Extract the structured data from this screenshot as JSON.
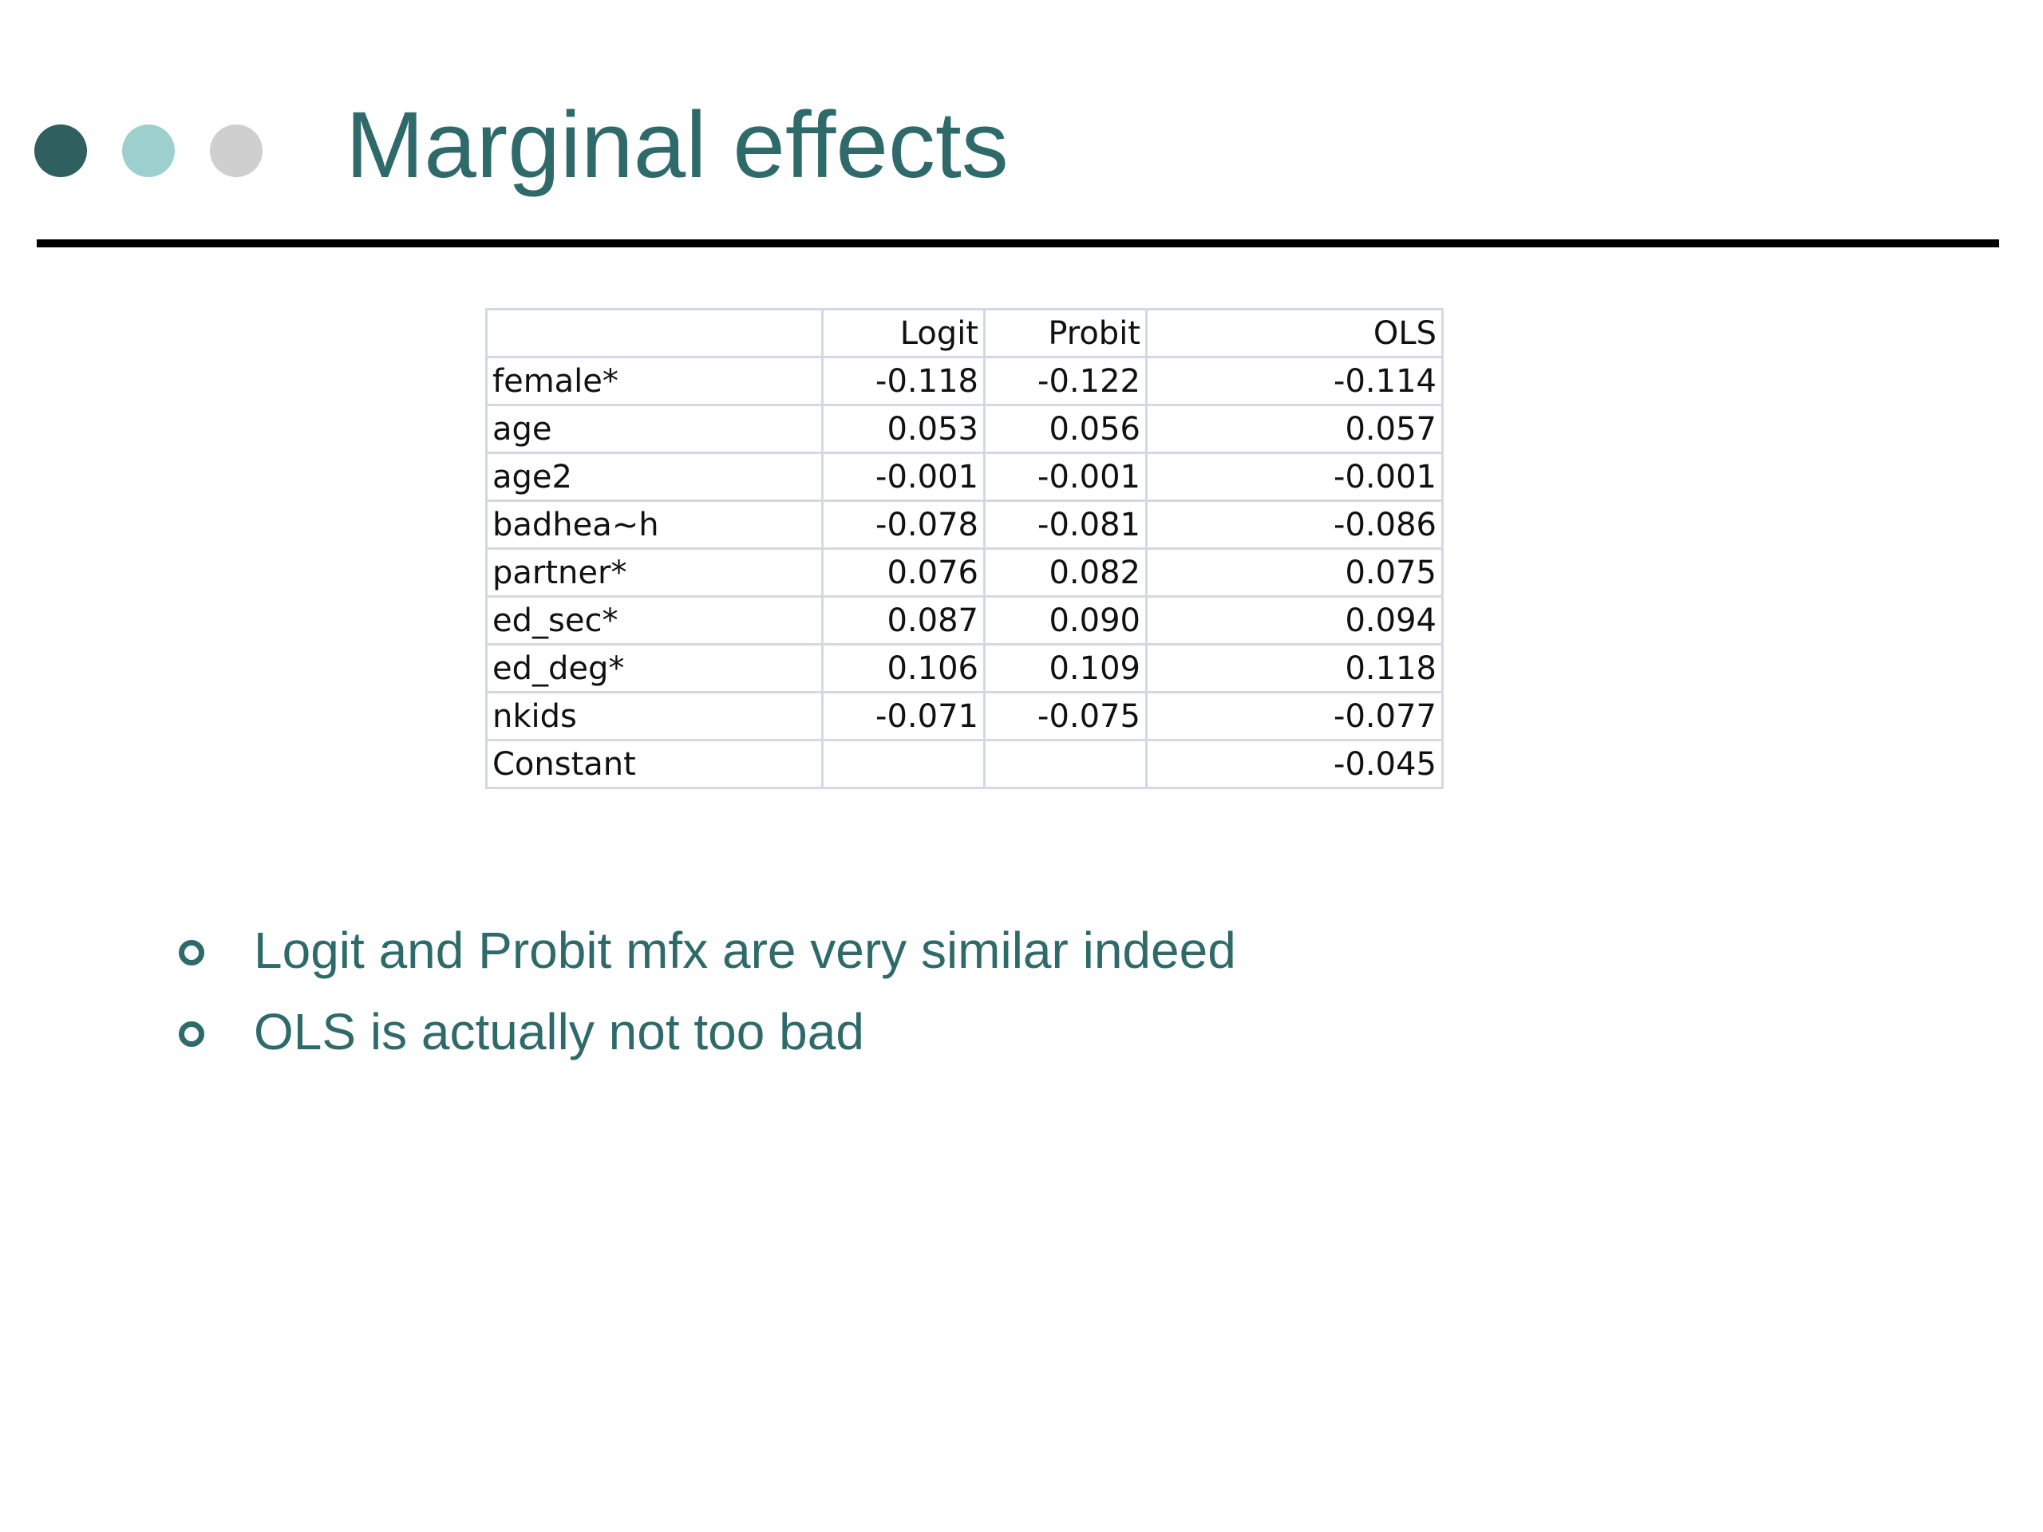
{
  "slide": {
    "title": "Marginal effects",
    "decor": {
      "dots": [
        {
          "name": "dark-teal",
          "color": "#2f5f5f"
        },
        {
          "name": "light-teal",
          "color": "#9dcfcf"
        },
        {
          "name": "light-gray",
          "color": "#cfcfcf"
        }
      ]
    },
    "colors": {
      "title": "#2f6a6a",
      "rule": "#000000",
      "table_border": "#d4d8e6"
    }
  },
  "table": {
    "headers": [
      "",
      "Logit",
      "Probit",
      "OLS"
    ],
    "rows": [
      {
        "label": "female*",
        "logit": "-0.118",
        "probit": "-0.122",
        "ols": "-0.114"
      },
      {
        "label": "age",
        "logit": "0.053",
        "probit": "0.056",
        "ols": "0.057"
      },
      {
        "label": "age2",
        "logit": "-0.001",
        "probit": "-0.001",
        "ols": "-0.001"
      },
      {
        "label": "badhea~h",
        "logit": "-0.078",
        "probit": "-0.081",
        "ols": "-0.086"
      },
      {
        "label": "partner*",
        "logit": "0.076",
        "probit": "0.082",
        "ols": "0.075"
      },
      {
        "label": "ed_sec*",
        "logit": "0.087",
        "probit": "0.090",
        "ols": "0.094"
      },
      {
        "label": "ed_deg*",
        "logit": "0.106",
        "probit": "0.109",
        "ols": "0.118"
      },
      {
        "label": "nkids",
        "logit": "-0.071",
        "probit": "-0.075",
        "ols": "-0.077"
      },
      {
        "label": "Constant",
        "logit": "",
        "probit": "",
        "ols": "-0.045"
      }
    ]
  },
  "bullets": [
    {
      "text": "Logit and Probit mfx are very similar indeed"
    },
    {
      "text": "OLS is actually not too bad"
    }
  ]
}
